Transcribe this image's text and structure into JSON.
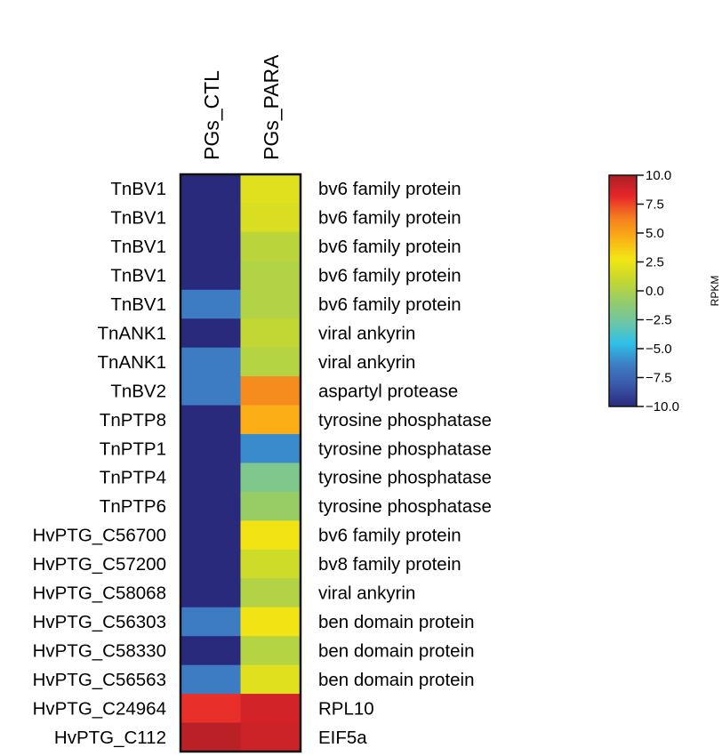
{
  "chart_data": {
    "type": "heatmap",
    "title": "",
    "columns": [
      "PGs_CTL",
      "PGs_PARA"
    ],
    "rows": [
      {
        "id": "TnBV1",
        "annotation": "bv6 family protein",
        "values": [
          -10.0,
          2.0
        ]
      },
      {
        "id": "TnBV1",
        "annotation": "bv6 family protein",
        "values": [
          -10.0,
          1.7
        ]
      },
      {
        "id": "TnBV1",
        "annotation": "bv6 family protein",
        "values": [
          -10.0,
          0.5
        ]
      },
      {
        "id": "TnBV1",
        "annotation": "bv6 family protein",
        "values": [
          -10.0,
          0.2
        ]
      },
      {
        "id": "TnBV1",
        "annotation": "bv6 family protein",
        "values": [
          -6.5,
          0.2
        ]
      },
      {
        "id": "TnANK1",
        "annotation": "viral ankyrin",
        "values": [
          -10.0,
          0.8
        ]
      },
      {
        "id": "TnANK1",
        "annotation": "viral ankyrin",
        "values": [
          -6.5,
          0.3
        ]
      },
      {
        "id": "TnBV2",
        "annotation": "aspartyl protease",
        "values": [
          -6.5,
          5.8
        ]
      },
      {
        "id": "TnPTP8",
        "annotation": "tyrosine phosphatase",
        "values": [
          -10.0,
          4.6
        ]
      },
      {
        "id": "TnPTP1",
        "annotation": "tyrosine phosphatase",
        "values": [
          -10.0,
          -6.0
        ]
      },
      {
        "id": "TnPTP4",
        "annotation": "tyrosine phosphatase",
        "values": [
          -10.0,
          -2.0
        ]
      },
      {
        "id": "TnPTP6",
        "annotation": "tyrosine phosphatase",
        "values": [
          -10.0,
          -0.8
        ]
      },
      {
        "id": "HvPTG_C56700",
        "annotation": "bv6 family protein",
        "values": [
          -10.0,
          2.8
        ]
      },
      {
        "id": "HvPTG_C57200",
        "annotation": "bv8 family protein",
        "values": [
          -10.0,
          1.3
        ]
      },
      {
        "id": "HvPTG_C58068",
        "annotation": "viral ankyrin",
        "values": [
          -10.0,
          0.2
        ]
      },
      {
        "id": "HvPTG_C56303",
        "annotation": "ben domain protein",
        "values": [
          -6.5,
          2.8
        ]
      },
      {
        "id": "HvPTG_C58330",
        "annotation": "ben domain protein",
        "values": [
          -10.0,
          0.3
        ]
      },
      {
        "id": "HvPTG_C56563",
        "annotation": "ben domain protein",
        "values": [
          -6.5,
          2.0
        ]
      },
      {
        "id": "HvPTG_C24964",
        "annotation": "RPL10",
        "values": [
          8.0,
          8.8
        ]
      },
      {
        "id": "HvPTG_C112",
        "annotation": "EIF5a",
        "values": [
          9.5,
          9.0
        ]
      }
    ],
    "colorbar": {
      "label": "RPKM",
      "range": [
        -10.0,
        10.0
      ],
      "ticks": [
        "10.0",
        "7.5",
        "5.0",
        "2.5",
        "0.0",
        "−2.5",
        "−5.0",
        "−7.5",
        "−10.0"
      ],
      "tick_values": [
        10.0,
        7.5,
        5.0,
        2.5,
        0.0,
        -2.5,
        -5.0,
        -7.5,
        -10.0
      ],
      "colormap": [
        "#2a2a7c",
        "#3a57a8",
        "#3d7ec4",
        "#2fc0e8",
        "#6ec6a6",
        "#95cc6a",
        "#c5d82f",
        "#f2e614",
        "#fbb016",
        "#f47c20",
        "#e8262a",
        "#a81f24"
      ]
    }
  }
}
